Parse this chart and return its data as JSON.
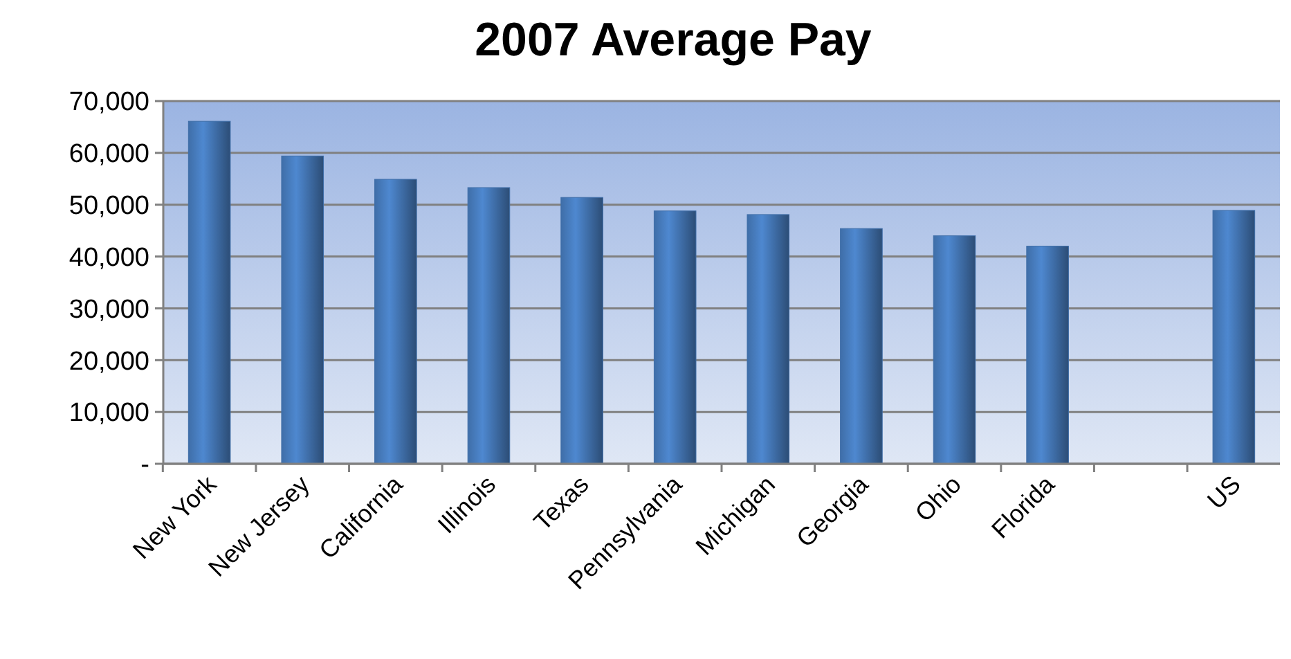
{
  "chart_data": {
    "type": "bar",
    "title": "2007 Average Pay",
    "categories": [
      "New York",
      "New Jersey",
      "California",
      "Illinois",
      "Texas",
      "Pennsylvania",
      "Michigan",
      "Georgia",
      "Ohio",
      "Florida",
      null,
      "US"
    ],
    "values": [
      66100,
      59400,
      54900,
      53300,
      51400,
      48800,
      48100,
      45400,
      44000,
      42000,
      null,
      48900
    ],
    "color": "#3f6ea8",
    "ylim": [
      0,
      70000
    ],
    "yticks": [
      {
        "value": 0,
        "label": "-"
      },
      {
        "value": 10000,
        "label": "10,000"
      },
      {
        "value": 20000,
        "label": "20,000"
      },
      {
        "value": 30000,
        "label": "30,000"
      },
      {
        "value": 40000,
        "label": "40,000"
      },
      {
        "value": 50000,
        "label": "50,000"
      },
      {
        "value": 60000,
        "label": "60,000"
      },
      {
        "value": 70000,
        "label": "70,000"
      }
    ],
    "grid": "y"
  }
}
